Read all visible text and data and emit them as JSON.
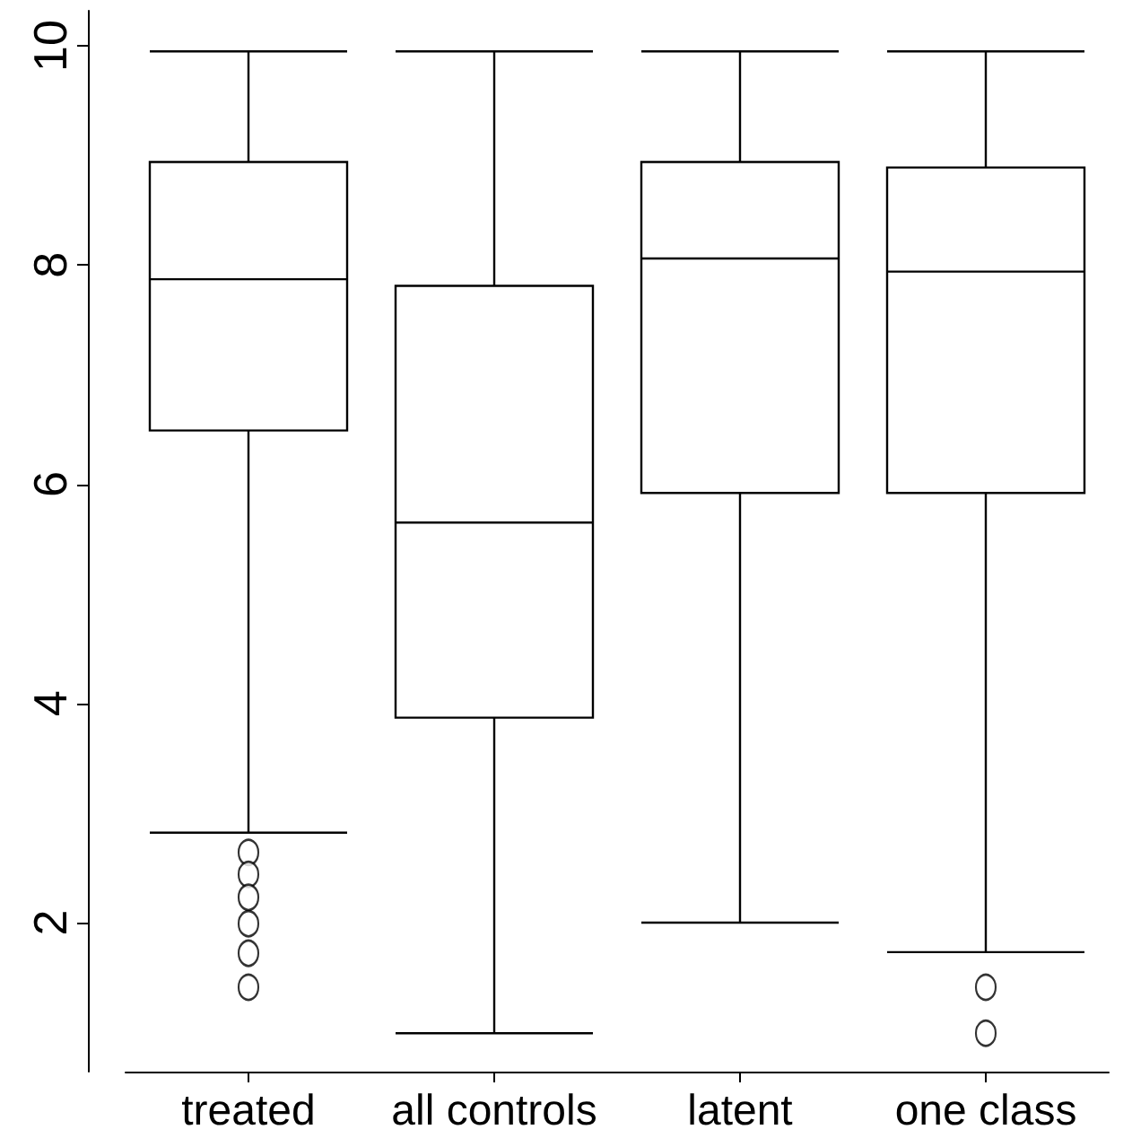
{
  "chart_data": {
    "type": "box",
    "categories": [
      "treated",
      "all controls",
      "latent",
      "one class"
    ],
    "boxes": [
      {
        "low": 2.82,
        "q1": 6.49,
        "median": 7.87,
        "q3": 8.94,
        "high": 9.95,
        "outliers": [
          2.64,
          2.44,
          2.23,
          1.99,
          1.72,
          1.41
        ]
      },
      {
        "low": 0.99,
        "q1": 3.87,
        "median": 5.65,
        "q3": 7.81,
        "high": 9.95
      },
      {
        "low": 2.0,
        "q1": 5.92,
        "median": 8.06,
        "q3": 8.94,
        "high": 9.95
      },
      {
        "low": 1.73,
        "q1": 5.92,
        "median": 7.94,
        "q3": 8.89,
        "high": 9.95,
        "outliers": [
          1.41,
          0.99
        ]
      }
    ],
    "ylim": [
      0.64,
      10.32
    ],
    "yticks": [
      2,
      4,
      6,
      8,
      10
    ],
    "grid": false
  }
}
